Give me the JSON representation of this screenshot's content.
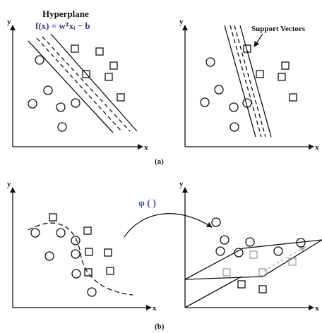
{
  "panel_a": {
    "left": {
      "title": "Hyperplane",
      "formula": "f(x) = wᵀxᵢ − b",
      "y_axis": "y",
      "x_axis": "x"
    },
    "right": {
      "annotation": "Support Vectors",
      "y_axis": "y",
      "x_axis": "x"
    },
    "caption": "(a)"
  },
  "panel_b": {
    "left": {
      "y_axis": "y",
      "x_axis": "x"
    },
    "mapping_label": "φ ( )",
    "right": {
      "y_axis": "y",
      "x_axis": "x"
    },
    "caption": "(b)"
  },
  "colors": {
    "ink": "#111111",
    "formula": "#3a3a8a",
    "phi": "#3b4fa8",
    "plane_arrow": "#a9a9a9"
  }
}
